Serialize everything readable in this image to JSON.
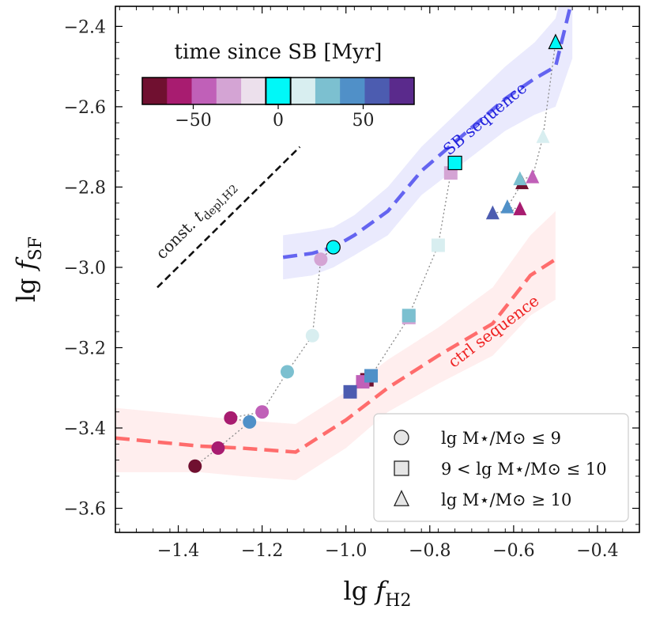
{
  "chart_data": {
    "type": "scatter",
    "xlabel": "lg f_H2",
    "ylabel": "lg f_SF",
    "xlim": [
      -1.55,
      -0.3
    ],
    "ylim": [
      -3.66,
      -2.35
    ],
    "xticks": [
      -1.4,
      -1.2,
      -1.0,
      -0.8,
      -0.6,
      -0.4
    ],
    "xtick_labels": [
      "−1.4",
      "−1.2",
      "−1.0",
      "−0.8",
      "−0.6",
      "−0.4"
    ],
    "yticks": [
      -3.6,
      -3.4,
      -3.2,
      -3.0,
      -2.8,
      -2.6,
      -2.4
    ],
    "ytick_labels": [
      "−3.6",
      "−3.4",
      "−3.2",
      "−3.0",
      "−2.8",
      "−2.6",
      "−2.4"
    ],
    "sequences": [
      {
        "name": "SB sequence",
        "color": "#5555ee",
        "x": [
          -1.15,
          -1.08,
          -1.03,
          -0.98,
          -0.9,
          -0.82,
          -0.72,
          -0.62,
          -0.55,
          -0.5,
          -0.46
        ],
        "y": [
          -2.975,
          -2.965,
          -2.95,
          -2.92,
          -2.86,
          -2.76,
          -2.67,
          -2.58,
          -2.53,
          -2.5,
          -2.33
        ],
        "band_upper": [
          -2.92,
          -2.91,
          -2.9,
          -2.87,
          -2.8,
          -2.7,
          -2.6,
          -2.5,
          -2.44,
          -2.38,
          -2.22
        ],
        "band_lower": [
          -3.03,
          -3.02,
          -3.0,
          -2.97,
          -2.92,
          -2.82,
          -2.74,
          -2.66,
          -2.62,
          -2.6,
          -2.48
        ]
      },
      {
        "name": "ctrl sequence",
        "color": "#ff5555",
        "x": [
          -1.55,
          -1.35,
          -1.25,
          -1.12,
          -1.0,
          -0.9,
          -0.78,
          -0.65,
          -0.56,
          -0.5
        ],
        "y": [
          -3.425,
          -3.445,
          -3.45,
          -3.46,
          -3.38,
          -3.3,
          -3.22,
          -3.14,
          -3.02,
          -2.98
        ],
        "band_upper": [
          -3.35,
          -3.37,
          -3.38,
          -3.39,
          -3.31,
          -3.23,
          -3.15,
          -3.05,
          -2.92,
          -2.86
        ],
        "band_lower": [
          -3.51,
          -3.51,
          -3.52,
          -3.53,
          -3.45,
          -3.36,
          -3.29,
          -3.22,
          -3.12,
          -3.08
        ]
      }
    ],
    "sequence_labels": [
      {
        "text": "SB sequence",
        "x": -0.66,
        "y": -2.64,
        "angle": -40,
        "color": "#2222dd"
      },
      {
        "text": "ctrl sequence",
        "x": -0.64,
        "y": -3.17,
        "angle": -37,
        "color": "#ee2222"
      }
    ],
    "const_line": {
      "x1": -1.45,
      "y1": -3.05,
      "x2": -1.11,
      "y2": -2.7,
      "label": "const. t_depl,H2",
      "label_x": -1.35,
      "label_y": -2.89
    },
    "tracks": [
      {
        "marker": "circle",
        "points": [
          {
            "x": -1.36,
            "y": -3.495,
            "t": -75
          },
          {
            "x": -1.305,
            "y": -3.45,
            "t": -60
          },
          {
            "x": -1.275,
            "y": -3.375,
            "t": -60
          },
          {
            "x": -1.2,
            "y": -3.36,
            "t": -40
          },
          {
            "x": -1.23,
            "y": -3.385,
            "t": 45
          },
          {
            "x": -1.14,
            "y": -3.26,
            "t": 30
          },
          {
            "x": -1.08,
            "y": -3.17,
            "t": 12
          },
          {
            "x": -1.06,
            "y": -2.98,
            "t": -25
          },
          {
            "x": -1.03,
            "y": -2.95,
            "t": 0
          }
        ]
      },
      {
        "marker": "square",
        "points": [
          {
            "x": -0.95,
            "y": -3.28,
            "t": -70
          },
          {
            "x": -0.96,
            "y": -3.285,
            "t": -50
          },
          {
            "x": -0.99,
            "y": -3.31,
            "t": 62
          },
          {
            "x": -0.94,
            "y": -3.27,
            "t": 45
          },
          {
            "x": -0.85,
            "y": -3.125,
            "t": -35
          },
          {
            "x": -0.85,
            "y": -3.12,
            "t": 22
          },
          {
            "x": -0.78,
            "y": -2.945,
            "t": 12
          },
          {
            "x": -0.75,
            "y": -2.765,
            "t": -28
          },
          {
            "x": -0.74,
            "y": -2.74,
            "t": 0
          }
        ]
      },
      {
        "marker": "triangle",
        "points": [
          {
            "x": -0.65,
            "y": -2.865,
            "t": 62
          },
          {
            "x": -0.615,
            "y": -2.85,
            "t": 45
          },
          {
            "x": -0.585,
            "y": -2.855,
            "t": -60
          },
          {
            "x": -0.58,
            "y": -2.79,
            "t": -70
          },
          {
            "x": -0.585,
            "y": -2.78,
            "t": 22
          },
          {
            "x": -0.555,
            "y": -2.775,
            "t": -40
          },
          {
            "x": -0.53,
            "y": -2.675,
            "t": 12
          },
          {
            "x": -0.5,
            "y": -2.44,
            "t": 0
          }
        ]
      }
    ],
    "colorbar": {
      "title": "time since SB [Myr]",
      "colors": [
        "#701030",
        "#a81c70",
        "#c060b8",
        "#d4a4d4",
        "#ece0ec",
        "#00f8f8",
        "#d8eef0",
        "#7cc0d0",
        "#5090c8",
        "#4c5cb0",
        "#5a2a8c"
      ],
      "tick_values": [
        -50,
        0,
        50
      ],
      "tick_labels": [
        "−50",
        "0",
        "50"
      ],
      "vmin": -80,
      "vmax": 80
    },
    "legend": {
      "position": "bottom-right",
      "entries": [
        {
          "marker": "circle",
          "label": "lg M⋆/M⊙ ≤ 9"
        },
        {
          "marker": "square",
          "label": "9 < lg M⋆/M⊙ ≤ 10"
        },
        {
          "marker": "triangle",
          "label": "lg M⋆/M⊙ ≥ 10"
        }
      ]
    }
  }
}
